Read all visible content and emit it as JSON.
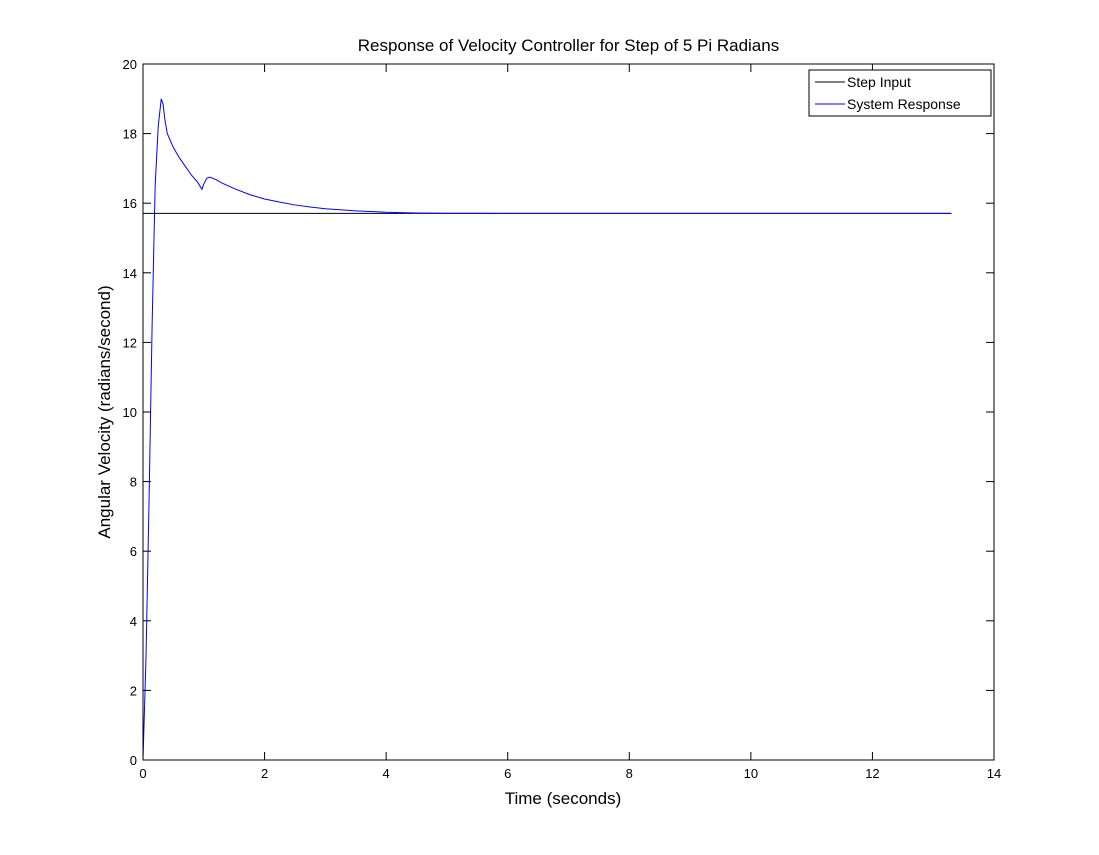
{
  "chart_data": {
    "type": "line",
    "title": "Response of Velocity Controller for Step of 5 Pi Radians",
    "xlabel": "Time (seconds)",
    "ylabel": "Angular Velocity (radians/second)",
    "xlim": [
      0,
      14
    ],
    "ylim": [
      0,
      20
    ],
    "xticks": [
      0,
      2,
      4,
      6,
      8,
      10,
      12,
      14
    ],
    "yticks": [
      0,
      2,
      4,
      6,
      8,
      10,
      12,
      14,
      16,
      18,
      20
    ],
    "grid": false,
    "legend_position": "top-right",
    "series": [
      {
        "name": "Step Input",
        "color": "#000000",
        "x": [
          0,
          13.3
        ],
        "y": [
          15.708,
          15.708
        ]
      },
      {
        "name": "System Response",
        "color": "#0000ff",
        "x": [
          0,
          0.05,
          0.1,
          0.15,
          0.2,
          0.25,
          0.3,
          0.33,
          0.36,
          0.4,
          0.45,
          0.5,
          0.6,
          0.7,
          0.8,
          0.9,
          0.97,
          1.0,
          1.05,
          1.1,
          1.2,
          1.3,
          1.5,
          1.75,
          2.0,
          2.25,
          2.5,
          2.75,
          3.0,
          3.5,
          4.0,
          4.5,
          5.0,
          6.0,
          8.0,
          10.0,
          12.0,
          13.3
        ],
        "y": [
          0,
          3.0,
          7.5,
          12.5,
          16.5,
          18.2,
          19.0,
          18.85,
          18.4,
          18.0,
          17.8,
          17.6,
          17.3,
          17.05,
          16.8,
          16.6,
          16.4,
          16.55,
          16.72,
          16.75,
          16.68,
          16.58,
          16.42,
          16.25,
          16.12,
          16.03,
          15.95,
          15.89,
          15.84,
          15.78,
          15.74,
          15.72,
          15.71,
          15.708,
          15.708,
          15.708,
          15.708,
          15.708
        ]
      }
    ]
  }
}
